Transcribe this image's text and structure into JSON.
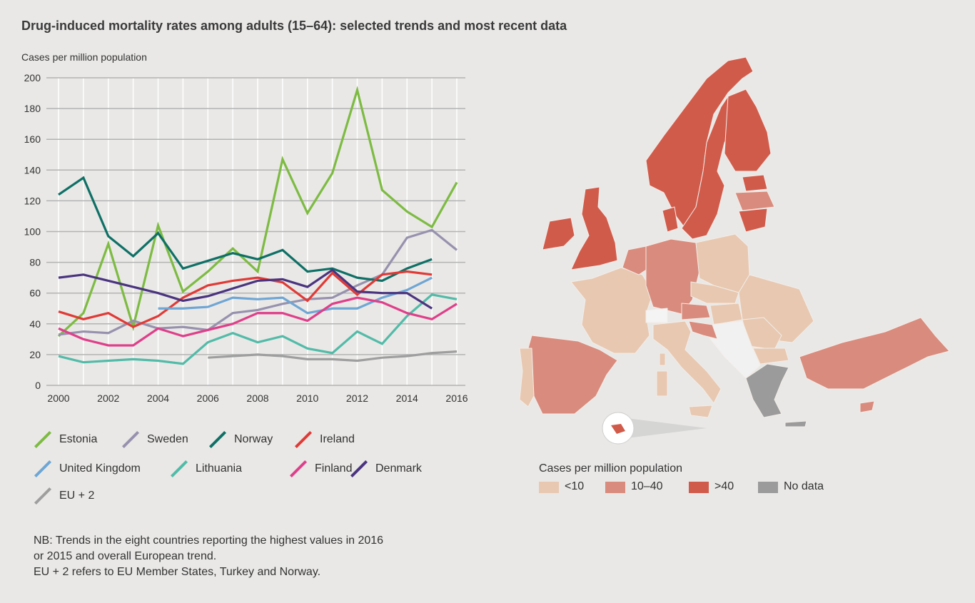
{
  "title": "Drug-induced mortality rates among adults (15–64): selected trends and most recent data",
  "chart_data": {
    "type": "line",
    "title": "Drug-induced mortality rates among adults (15–64): selected trends and most recent data",
    "ylabel": "Cases per million population",
    "xlabel": "",
    "ylim": [
      0,
      200
    ],
    "yticks": [
      "0",
      "20",
      "40",
      "60",
      "80",
      "100",
      "120",
      "140",
      "160",
      "180",
      "200"
    ],
    "xlim": [
      2000,
      2016
    ],
    "xticks": [
      "2000",
      "2002",
      "2004",
      "2006",
      "2008",
      "2010",
      "2012",
      "2014",
      "2016"
    ],
    "grid": true,
    "legend_position": "bottom",
    "x": [
      2000,
      2001,
      2002,
      2003,
      2004,
      2005,
      2006,
      2007,
      2008,
      2009,
      2010,
      2011,
      2012,
      2013,
      2014,
      2015,
      2016
    ],
    "series": [
      {
        "name": "Estonia",
        "color": "#7dbb42",
        "values": [
          32,
          47,
          92,
          38,
          104,
          61,
          74,
          89,
          74,
          147,
          112,
          138,
          192,
          127,
          113,
          103,
          132
        ]
      },
      {
        "name": "Sweden",
        "color": "#9891ae",
        "values": [
          33,
          35,
          34,
          42,
          37,
          38,
          36,
          47,
          49,
          53,
          56,
          57,
          65,
          72,
          96,
          101,
          88
        ]
      },
      {
        "name": "Norway",
        "color": "#0e7066",
        "values": [
          124,
          135,
          97,
          84,
          99,
          76,
          81,
          86,
          82,
          88,
          74,
          76,
          70,
          68,
          76,
          82,
          null
        ]
      },
      {
        "name": "Ireland",
        "color": "#e03a36",
        "values": [
          48,
          43,
          47,
          38,
          45,
          57,
          65,
          68,
          70,
          67,
          55,
          73,
          59,
          72,
          74,
          72,
          null
        ]
      },
      {
        "name": "United Kingdom",
        "color": "#6fa6d4",
        "values": [
          null,
          null,
          null,
          null,
          50,
          50,
          51,
          57,
          56,
          57,
          47,
          50,
          50,
          57,
          62,
          70,
          null
        ]
      },
      {
        "name": "Lithuania",
        "color": "#52bba8",
        "values": [
          19,
          15,
          16,
          17,
          16,
          14,
          28,
          34,
          28,
          32,
          24,
          21,
          35,
          27,
          45,
          59,
          56
        ]
      },
      {
        "name": "Finland",
        "color": "#df3f8a",
        "values": [
          37,
          30,
          26,
          26,
          37,
          32,
          36,
          40,
          47,
          47,
          42,
          53,
          57,
          54,
          47,
          43,
          53
        ]
      },
      {
        "name": "Denmark",
        "color": "#4a347f",
        "values": [
          70,
          72,
          68,
          64,
          60,
          55,
          58,
          63,
          68,
          69,
          64,
          75,
          61,
          60,
          60,
          50,
          null
        ]
      },
      {
        "name": "EU + 2",
        "color": "#9e9e9e",
        "values": [
          null,
          null,
          null,
          null,
          null,
          null,
          18,
          19,
          20,
          19,
          17,
          17,
          16,
          18,
          19,
          21,
          22
        ]
      }
    ]
  },
  "notes": [
    "NB: Trends in the eight countries reporting the highest values in 2016",
    "or 2015 and overall European trend.",
    "EU + 2 refers to EU Member States, Turkey and Norway."
  ],
  "map": {
    "legend_title": "Cases per million population",
    "categories": [
      {
        "label": "<10",
        "color": "#e8c8b1"
      },
      {
        "label": "10–40",
        "color": "#d98b7d"
      },
      {
        "label": ">40",
        "color": "#d15b4b"
      },
      {
        "label": "No data",
        "color": "#9b9b9b"
      }
    ]
  }
}
